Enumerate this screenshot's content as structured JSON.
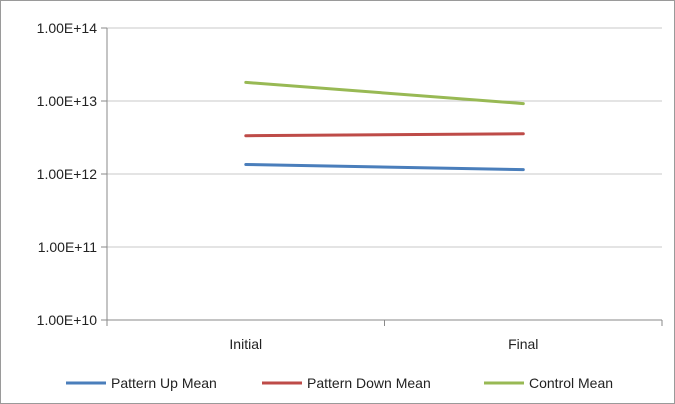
{
  "chart_data": {
    "type": "line",
    "title": "",
    "xlabel": "",
    "ylabel": "",
    "y_scale": "log",
    "ylim": [
      10000000000.0,
      100000000000000.0
    ],
    "y_ticks": [
      {
        "value": 100000000000000.0,
        "label": "1.00E+14"
      },
      {
        "value": 10000000000000.0,
        "label": "1.00E+13"
      },
      {
        "value": 1000000000000.0,
        "label": "1.00E+12"
      },
      {
        "value": 100000000000.0,
        "label": "1.00E+11"
      },
      {
        "value": 10000000000.0,
        "label": "1.00E+10"
      }
    ],
    "categories": [
      "Initial",
      "Final"
    ],
    "grid": "horizontal",
    "legend": "bottom",
    "series": [
      {
        "name": "Pattern Up Mean",
        "color": "#4a7ebb",
        "values": [
          1350000000000.0,
          1150000000000.0
        ]
      },
      {
        "name": "Pattern Down Mean",
        "color": "#be4b48",
        "values": [
          3350000000000.0,
          3550000000000.0
        ]
      },
      {
        "name": "Control Mean",
        "color": "#98b954",
        "values": [
          18000000000000.0,
          9200000000000.0
        ]
      }
    ]
  }
}
